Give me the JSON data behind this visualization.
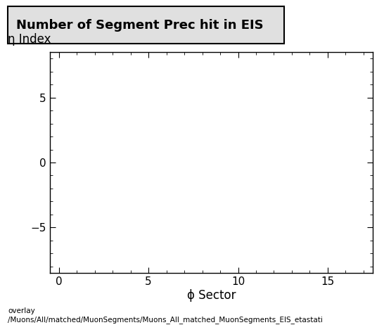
{
  "title": "Number of Segment Prec hit in EIS",
  "xlabel": "ϕ Sector",
  "ylabel": "η Index",
  "xlim": [
    -0.5,
    17.5
  ],
  "ylim": [
    -8.5,
    8.5
  ],
  "xticks": [
    0,
    5,
    10,
    15
  ],
  "yticks": [
    -5,
    0,
    5
  ],
  "background_color": "#ffffff",
  "plot_bg_color": "#ffffff",
  "footer_line1": "overlay",
  "footer_line2": "/Muons/All/matched/MuonSegments/Muons_All_matched_MuonSegments_EIS_etastati",
  "title_fontsize": 13,
  "axis_label_fontsize": 12,
  "tick_fontsize": 11,
  "footer_fontsize": 7.5
}
